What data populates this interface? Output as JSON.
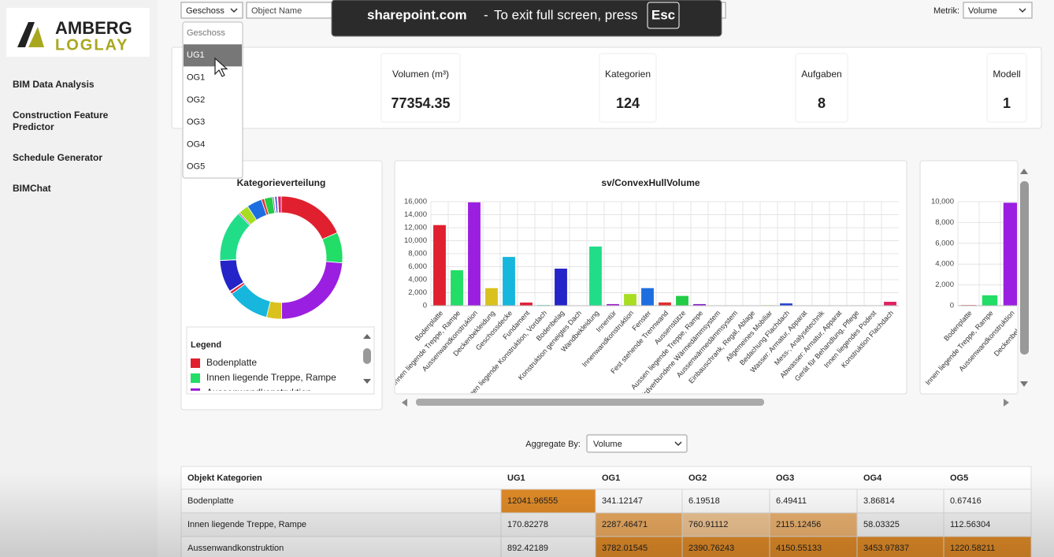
{
  "sidebar": {
    "logo": {
      "line1": "AMBERG",
      "line2": "LOGLAY"
    },
    "menu": [
      "BIM Data Analysis",
      "Construction Feature Predictor",
      "Schedule Generator",
      "BIMChat"
    ]
  },
  "toolbar": {
    "filter_select": "Geschoss",
    "object_input": "Object Name",
    "metric_label": "Metrik:",
    "metric_select": "Volume"
  },
  "dropdown": {
    "options": [
      "Geschoss",
      "UG1",
      "OG1",
      "OG2",
      "OG3",
      "OG4",
      "OG5"
    ],
    "selected": 1
  },
  "fullscreen_notice": {
    "domain": "sharepoint.com",
    "separator": "-",
    "message": "To exit full screen, press",
    "key": "Esc"
  },
  "kpis": [
    {
      "label": "Volumen (m³)",
      "value": 77354.35
    },
    {
      "label": "Kategorien",
      "value": 124
    },
    {
      "label": "Aufgaben",
      "value": 8
    },
    {
      "label": "Modell",
      "value": 1
    }
  ],
  "donut_chart": {
    "type": "pie",
    "title": "Kategorieverteilung",
    "legend_title": "Legend",
    "hole": true
  },
  "bar_chart": {
    "type": "bar",
    "title": "sv/ConvexHullVolume",
    "categories": [
      "Bodenplatte",
      "Innen liegende Treppe, Rampe",
      "Aussenwandkonstruktion",
      "Deckenbekleidung",
      "Geschossdecke",
      "Fundament",
      "Innen liegende Konstruktion, Vordach",
      "Bodenbelag",
      "Konstruktion geneigtes Dach",
      "Wandbekleidung",
      "Innentür",
      "Innenwandkonstruktion",
      "Fenster",
      "Fest stehende Trennwand",
      "Aussenstütze",
      "Aussen liegende Treppe, Rampe",
      "Erdverbundene Wärmedämmsystem",
      "Aussenwärmedämmsystem",
      "Einbauschrank, Regal, Ablage",
      "Allgemeines Mobiliar",
      "Bedachung Flachdach",
      "Wasser: Armatur, Apparat",
      "Mess-, Analysetechnik",
      "Abwasser: Armatur, Apparat",
      "Gerät für Behandlung, Pflege",
      "Innen liegendes Podest",
      "Konstruktion Flachdach"
    ],
    "values": [
      12400,
      5450,
      15900,
      2700,
      7500,
      480,
      100,
      5700,
      30,
      9100,
      250,
      1800,
      2700,
      500,
      1500,
      250,
      20,
      30,
      40,
      80,
      350,
      60,
      30,
      40,
      30,
      20,
      600
    ],
    "colors": [
      "#e0202e",
      "#22dd66",
      "#9a1fe0",
      "#d9c21e",
      "#16b6dd",
      "#e0203a",
      "#22dd99",
      "#2424c8",
      "#e060c0",
      "#22dd88",
      "#a020d0",
      "#a8dd22",
      "#1e6ee0",
      "#e03030",
      "#22cc44",
      "#8a20d0",
      "#c0c020",
      "#20b0d0",
      "#e06020",
      "#b0e040",
      "#2040d0",
      "#e02080",
      "#30d060",
      "#a040c0",
      "#d0c030",
      "#40c0e0",
      "#e02060"
    ],
    "ylim": [
      0,
      16000
    ],
    "yticks": [
      0,
      {
        "value": 2000,
        "label": "2,000"
      },
      {
        "value": 4000,
        "label": "4,000"
      },
      {
        "value": 6000,
        "label": "6,000"
      },
      {
        "value": 8000,
        "label": "8,000"
      },
      {
        "value": 10000,
        "label": "10,000"
      },
      {
        "value": 12000,
        "label": "12,000"
      },
      {
        "value": 14000,
        "label": "14,000"
      },
      {
        "value": 16000,
        "label": "16,000"
      }
    ],
    "grid": true
  },
  "side_chart": {
    "type": "bar",
    "categories": [
      "Bodenplatte",
      "Innen liegende Treppe, Rampe",
      "Aussenwandkonstruktion",
      "Deckenbekleidung"
    ],
    "values": [
      60,
      1000,
      9900,
      null
    ],
    "colors": [
      "#e0202e",
      "#22dd66",
      "#9a1fe0",
      "#d9c21e"
    ],
    "ylim": [
      0,
      10000
    ],
    "yticks": [
      0,
      {
        "value": 2000,
        "label": "2,000"
      },
      {
        "value": 4000,
        "label": "4,000"
      },
      {
        "value": 6000,
        "label": "6,000"
      },
      {
        "value": 8000,
        "label": "8,000"
      },
      {
        "value": 10000,
        "label": "10,000"
      }
    ],
    "grid": true
  },
  "aggregate": {
    "label": "Aggregate By:",
    "select": "Volume"
  },
  "table": {
    "columns": [
      "Objekt Kategorien",
      "UG1",
      "OG1",
      "OG2",
      "OG3",
      "OG4",
      "OG5"
    ],
    "rows": [
      [
        "Bodenplatte",
        12041.96555,
        341.12147,
        6.19518,
        6.49411,
        3.86814,
        0.67416
      ],
      [
        "Innen liegende Treppe, Rampe",
        170.82278,
        2287.46471,
        760.91112,
        2115.12456,
        58.03325,
        112.56304
      ],
      [
        "Aussenwandkonstruktion",
        892.42189,
        3782.01545,
        2390.76243,
        4150.55133,
        3453.97837,
        1220.58211
      ]
    ]
  }
}
